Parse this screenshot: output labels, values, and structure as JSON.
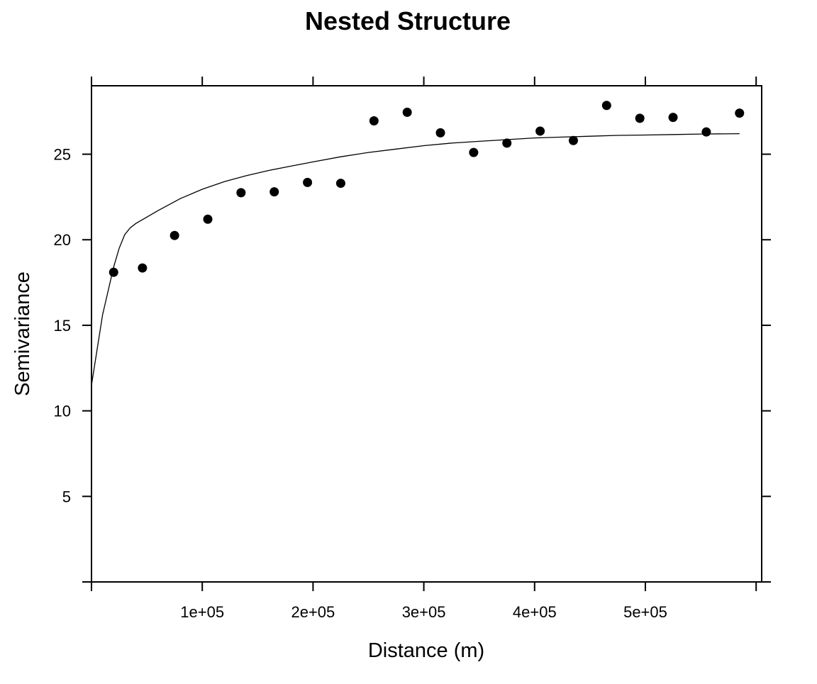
{
  "chart_data": {
    "type": "scatter",
    "title": "Nested Structure",
    "xlabel": "Distance (m)",
    "ylabel": "Semivariance",
    "xlim": [
      0,
      605000
    ],
    "ylim": [
      0,
      29
    ],
    "x_ticks": [
      {
        "value": 100000,
        "label": "1e+05"
      },
      {
        "value": 200000,
        "label": "2e+05"
      },
      {
        "value": 300000,
        "label": "3e+05"
      },
      {
        "value": 400000,
        "label": "4e+05"
      },
      {
        "value": 500000,
        "label": "5e+05"
      }
    ],
    "x_ticks_unlabeled": [
      0,
      600000
    ],
    "y_ticks": [
      {
        "value": 5,
        "label": "5"
      },
      {
        "value": 10,
        "label": "10"
      },
      {
        "value": 15,
        "label": "15"
      },
      {
        "value": 20,
        "label": "20"
      },
      {
        "value": 25,
        "label": "25"
      }
    ],
    "y_ticks_unlabeled": [
      0
    ],
    "grid": false,
    "legend": "none",
    "points": {
      "color": "#000000",
      "x": [
        20000,
        46000,
        75000,
        105000,
        135000,
        165000,
        195000,
        225000,
        255000,
        285000,
        315000,
        345000,
        375000,
        405000,
        435000,
        465000,
        495000,
        525000,
        555000,
        585000
      ],
      "y": [
        18.1,
        18.35,
        20.25,
        21.2,
        22.75,
        22.8,
        23.35,
        23.3,
        26.95,
        27.45,
        26.25,
        25.1,
        25.65,
        26.35,
        25.8,
        27.85,
        27.1,
        27.15,
        26.3,
        27.4
      ]
    },
    "fitted_line": {
      "color": "#000000",
      "x": [
        0,
        10000,
        20000,
        25000,
        30000,
        35000,
        40000,
        60000,
        80000,
        100000,
        120000,
        140000,
        160000,
        180000,
        200000,
        225000,
        250000,
        275000,
        300000,
        325000,
        350000,
        375000,
        400000,
        425000,
        450000,
        475000,
        500000,
        525000,
        550000,
        585000
      ],
      "y": [
        11.5,
        15.6,
        18.4,
        19.5,
        20.3,
        20.7,
        20.95,
        21.7,
        22.4,
        22.95,
        23.4,
        23.75,
        24.05,
        24.3,
        24.55,
        24.85,
        25.1,
        25.3,
        25.5,
        25.65,
        25.75,
        25.85,
        25.95,
        26.0,
        26.05,
        26.1,
        26.12,
        26.15,
        26.18,
        26.2
      ]
    }
  }
}
